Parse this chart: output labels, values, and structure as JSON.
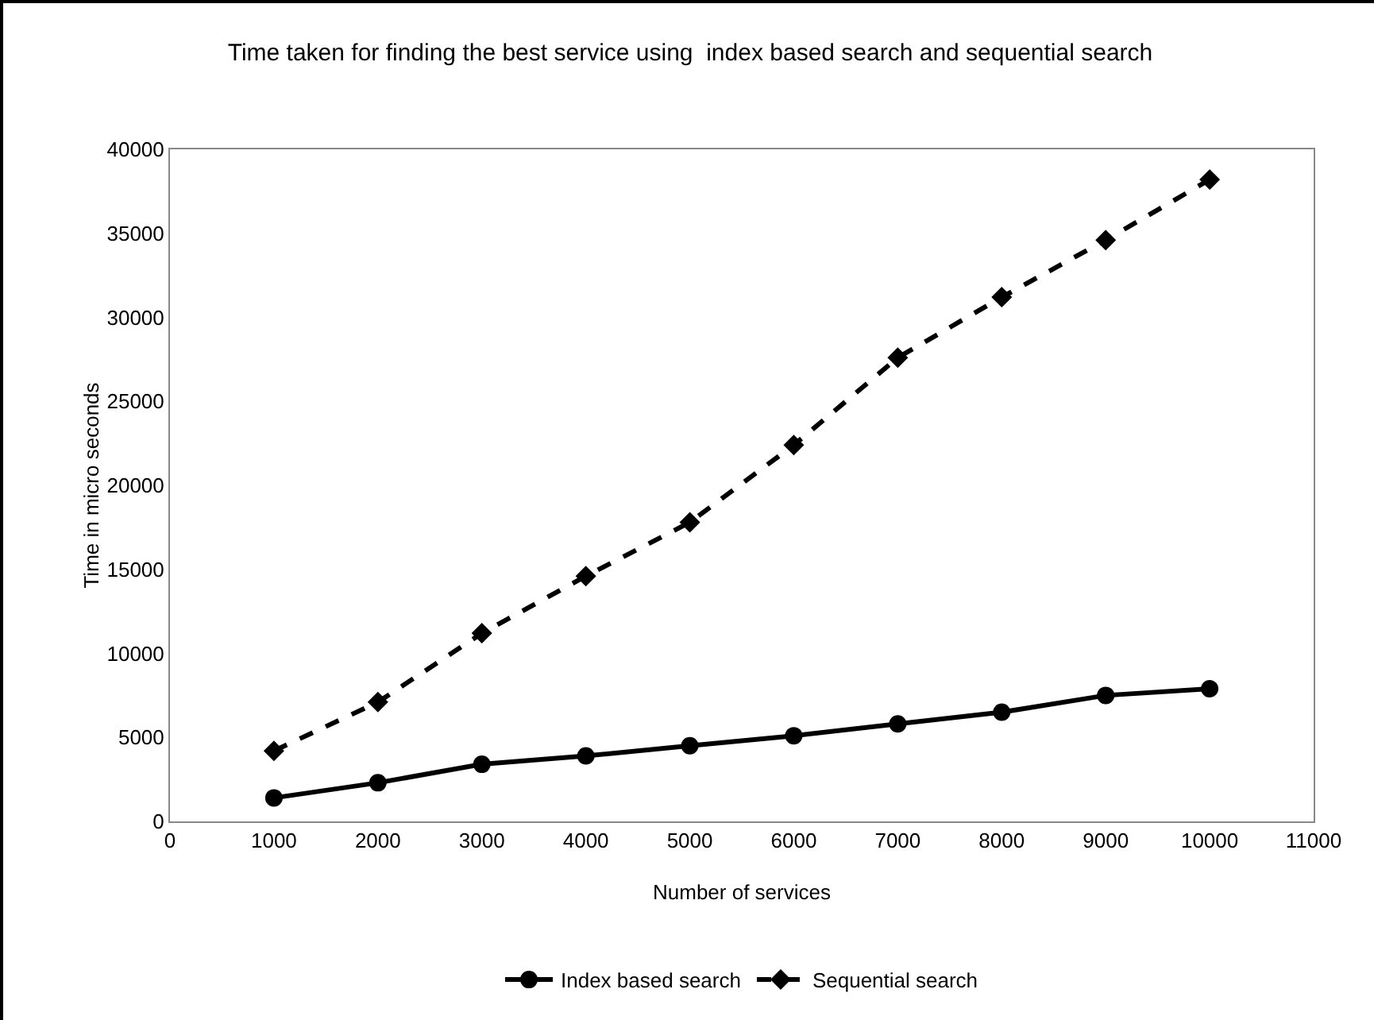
{
  "chart_data": {
    "type": "line",
    "title": "Time taken for finding the best service using  index based search and sequential search",
    "xlabel": "Number of services",
    "ylabel": "Time in micro seconds",
    "x": [
      1000,
      2000,
      3000,
      4000,
      5000,
      6000,
      7000,
      8000,
      9000,
      10000
    ],
    "series": [
      {
        "name": "Index based search",
        "color": "#000000",
        "marker": "circle",
        "line_style": "solid",
        "values": [
          1400,
          2300,
          3400,
          3900,
          4500,
          5100,
          5800,
          6500,
          7500,
          7900
        ]
      },
      {
        "name": "Sequential search",
        "color": "#000000",
        "marker": "diamond",
        "line_style": "dashed",
        "values": [
          4200,
          7100,
          11200,
          14600,
          17800,
          22400,
          27600,
          31200,
          34600,
          38200
        ]
      }
    ],
    "xlim": [
      0,
      11000
    ],
    "xticks": [
      0,
      1000,
      2000,
      3000,
      4000,
      5000,
      6000,
      7000,
      8000,
      9000,
      10000,
      11000
    ],
    "ylim": [
      0,
      40000
    ],
    "yticks": [
      0,
      5000,
      10000,
      15000,
      20000,
      25000,
      30000,
      35000,
      40000
    ],
    "grid": false,
    "legend": "bottom"
  }
}
